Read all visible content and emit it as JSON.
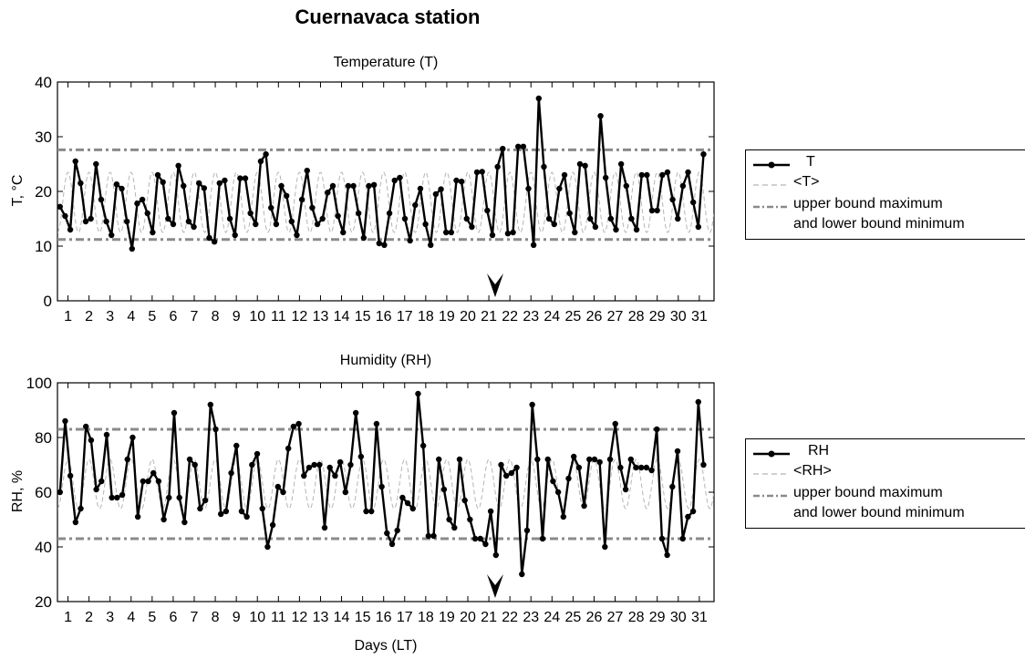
{
  "figure_title": "Cuernavaca station",
  "shared_xlabel": "Days (LT)",
  "chart_data": [
    {
      "type": "line",
      "title": "Temperature (T)",
      "xlabel": "Days (LT)",
      "ylabel": "T, °C",
      "ylim": [
        0,
        40
      ],
      "yticks": [
        0,
        10,
        20,
        30,
        40
      ],
      "xlim": [
        0.5,
        31.7
      ],
      "xtick_labels": [
        "1",
        "2",
        "3",
        "4",
        "5",
        "6",
        "7",
        "8",
        "9",
        "10",
        "11",
        "12",
        "13",
        "14",
        "15",
        "16",
        "17",
        "18",
        "19",
        "20",
        "21",
        "22",
        "23",
        "24",
        "25",
        "26",
        "27",
        "28",
        "29",
        "30",
        "31"
      ],
      "grid": false,
      "legend_placement": "right",
      "arrow_marker_day": 21.3,
      "series": [
        {
          "name": "T",
          "style": "solid-with-markers",
          "color": "#000000",
          "values": [
            17.2,
            15.5,
            13.0,
            25.5,
            21.5,
            14.5,
            15.0,
            25.0,
            18.5,
            14.5,
            12.0,
            21.3,
            20.5,
            14.5,
            9.5,
            17.8,
            18.5,
            16.0,
            12.5,
            23.0,
            21.7,
            15.0,
            14.0,
            24.7,
            21.0,
            14.5,
            13.5,
            21.5,
            20.6,
            11.5,
            10.8,
            21.5,
            22.0,
            15.0,
            12.0,
            22.4,
            22.4,
            16.0,
            14.0,
            25.5,
            26.8,
            17.0,
            14.0,
            21.0,
            19.2,
            14.5,
            12.0,
            18.5,
            23.8,
            17.0,
            14.0,
            15.0,
            19.8,
            21.0,
            15.5,
            12.5,
            21.0,
            21.0,
            16.0,
            11.5,
            21.0,
            21.2,
            10.5,
            10.2,
            16.0,
            22.0,
            22.5,
            15.0,
            11.0,
            17.5,
            20.5,
            14.0,
            10.2,
            19.5,
            20.4,
            12.5,
            12.5,
            22.0,
            21.8,
            15.0,
            13.5,
            23.5,
            23.6,
            16.5,
            12.0,
            24.5,
            27.8,
            12.3,
            12.5,
            28.2,
            28.2,
            20.5,
            10.2,
            37.0,
            24.5,
            15.0,
            14.0,
            20.5,
            23.0,
            16.0,
            12.5,
            25.0,
            24.7,
            15.0,
            13.5,
            33.8,
            22.5,
            15.0,
            13.0,
            25.0,
            21.0,
            15.0,
            13.0,
            23.0,
            23.0,
            16.5,
            16.5,
            23.0,
            23.5,
            18.5,
            15.0,
            21.0,
            23.5,
            18.0,
            13.5,
            26.8
          ]
        },
        {
          "name": "<T>",
          "style": "dashed",
          "color": "#b5b5b5",
          "mean": 18.0,
          "amplitude": 5.5,
          "period_days": 1
        },
        {
          "name": "upper bound maximum",
          "style": "dashdot",
          "color": "#8a8a8a",
          "value": 27.6
        },
        {
          "name": "and lower bound minimum",
          "style": "dashdot",
          "color": "#8a8a8a",
          "value": 11.2
        }
      ]
    },
    {
      "type": "line",
      "title": "Humidity (RH)",
      "xlabel": "Days (LT)",
      "ylabel": "RH, %",
      "ylim": [
        20,
        100
      ],
      "yticks": [
        20,
        40,
        60,
        80,
        100
      ],
      "xlim": [
        0.5,
        31.7
      ],
      "xtick_labels": [
        "1",
        "2",
        "3",
        "4",
        "5",
        "6",
        "7",
        "8",
        "9",
        "10",
        "11",
        "12",
        "13",
        "14",
        "15",
        "16",
        "17",
        "18",
        "19",
        "20",
        "21",
        "22",
        "23",
        "24",
        "25",
        "26",
        "27",
        "28",
        "29",
        "30",
        "31"
      ],
      "grid": false,
      "legend_placement": "right",
      "arrow_marker_day": 21.3,
      "series": [
        {
          "name": "RH",
          "style": "solid-with-markers",
          "color": "#000000",
          "values": [
            60,
            86,
            66,
            49,
            54,
            84,
            79,
            61,
            64,
            81,
            58,
            58,
            59,
            72,
            80,
            51,
            64,
            64,
            67,
            64,
            50,
            58,
            89,
            58,
            49,
            72,
            70,
            54,
            57,
            92,
            83,
            52,
            53,
            67,
            77,
            53,
            51,
            70,
            74,
            54,
            40,
            48,
            62,
            60,
            76,
            84,
            85,
            66,
            69,
            70,
            70,
            47,
            69,
            66,
            71,
            60,
            70,
            89,
            73,
            53,
            53,
            85,
            62,
            45,
            41,
            46,
            58,
            56,
            54,
            96,
            77,
            44,
            44,
            72,
            61,
            50,
            47,
            72,
            57,
            50,
            43,
            43,
            41,
            53,
            37,
            70,
            66,
            67,
            69,
            30,
            46,
            92,
            72,
            43,
            72,
            64,
            60,
            51,
            65,
            73,
            69,
            55,
            72,
            72,
            71,
            40,
            72,
            85,
            69,
            61,
            72,
            69,
            69,
            69,
            68,
            83,
            43,
            37,
            62,
            75,
            43,
            51,
            53,
            93,
            70
          ]
        },
        {
          "name": "<RH>",
          "style": "dashed",
          "color": "#b5b5b5",
          "mean": 63.0,
          "amplitude": 9.0,
          "period_days": 1
        },
        {
          "name": "upper bound maximum",
          "style": "dashdot",
          "color": "#8a8a8a",
          "value": 83.0
        },
        {
          "name": "and lower bound minimum",
          "style": "dashdot",
          "color": "#8a8a8a",
          "value": 43.0
        }
      ]
    }
  ],
  "legends": [
    {
      "entries": [
        "T",
        "<T>",
        "upper bound maximum",
        "and lower bound minimum"
      ]
    },
    {
      "entries": [
        "RH",
        "<RH>",
        "upper bound maximum",
        "and lower bound minimum"
      ]
    }
  ]
}
